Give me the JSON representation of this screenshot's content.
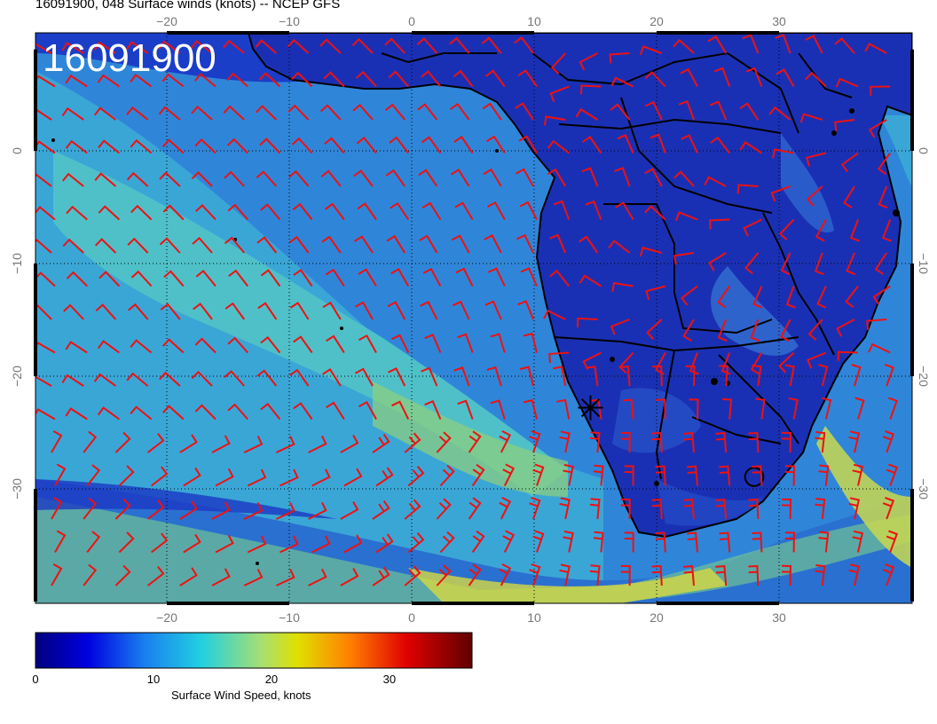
{
  "header": {
    "title": "16091900, 048 Surface winds (knots) -- NCEP GFS"
  },
  "map": {
    "stamp": "16091900",
    "lon_ticks": [
      "-20",
      "-10",
      "0",
      "10",
      "20",
      "30"
    ],
    "lat_ticks": [
      "0",
      "-10",
      "-20",
      "-30"
    ],
    "marker": {
      "name": "asterisk-marker",
      "lon": 14.6,
      "lat": -22.8
    },
    "colors": {
      "barb": "#ee1111",
      "coast": "#000000",
      "ocean_low": "#1b3ed0",
      "ocean_mid": "#3fa4d8",
      "ocean_high": "#54c8c8",
      "land": "#1a2fb0"
    }
  },
  "colorbar": {
    "label": "Surface Wind Speed, knots",
    "ticks": [
      "0",
      "10",
      "20",
      "30"
    ],
    "range": [
      0,
      37
    ]
  }
}
